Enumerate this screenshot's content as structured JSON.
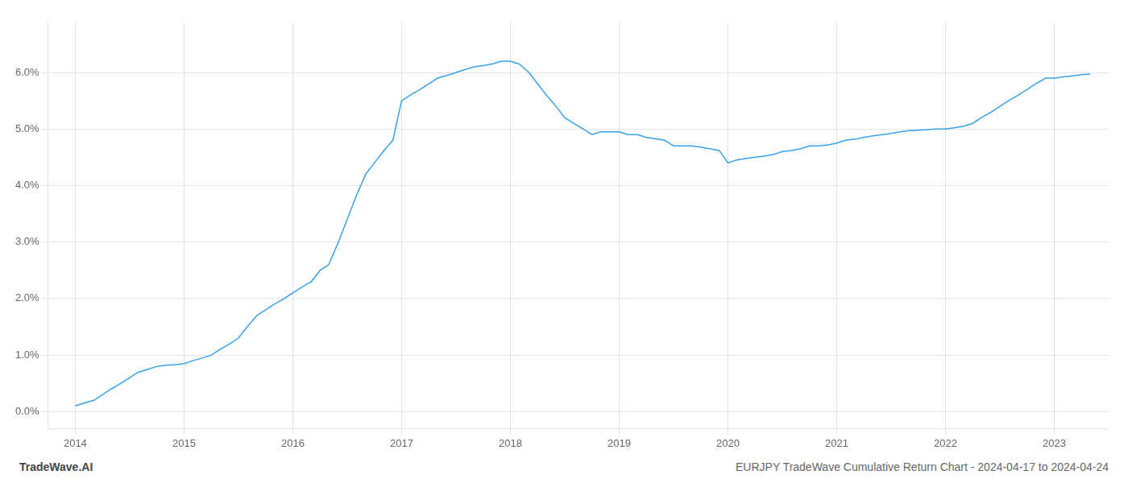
{
  "chart_data": {
    "type": "line",
    "title": "EURJPY TradeWave Cumulative Return Chart - 2024-04-17 to 2024-04-24",
    "annotations": [
      "TradeWave.AI"
    ],
    "x": [
      2014.0,
      2014.08,
      2014.17,
      2014.25,
      2014.33,
      2014.42,
      2014.5,
      2014.58,
      2014.67,
      2014.75,
      2014.83,
      2014.92,
      2015.0,
      2015.08,
      2015.17,
      2015.25,
      2015.33,
      2015.42,
      2015.5,
      2015.58,
      2015.67,
      2015.75,
      2015.83,
      2015.92,
      2016.0,
      2016.08,
      2016.17,
      2016.25,
      2016.33,
      2016.42,
      2016.5,
      2016.58,
      2016.67,
      2016.75,
      2016.83,
      2016.92,
      2017.0,
      2017.08,
      2017.17,
      2017.25,
      2017.33,
      2017.42,
      2017.5,
      2017.58,
      2017.67,
      2017.75,
      2017.83,
      2017.92,
      2018.0,
      2018.08,
      2018.17,
      2018.25,
      2018.33,
      2018.42,
      2018.5,
      2018.58,
      2018.67,
      2018.75,
      2018.83,
      2018.92,
      2019.0,
      2019.08,
      2019.17,
      2019.25,
      2019.33,
      2019.42,
      2019.5,
      2019.58,
      2019.67,
      2019.75,
      2019.83,
      2019.92,
      2020.0,
      2020.08,
      2020.17,
      2020.25,
      2020.33,
      2020.42,
      2020.5,
      2020.58,
      2020.67,
      2020.75,
      2020.83,
      2020.92,
      2021.0,
      2021.08,
      2021.17,
      2021.25,
      2021.33,
      2021.42,
      2021.5,
      2021.58,
      2021.67,
      2021.75,
      2021.83,
      2021.92,
      2022.0,
      2022.08,
      2022.17,
      2022.25,
      2022.33,
      2022.42,
      2022.5,
      2022.58,
      2022.67,
      2022.75,
      2022.83,
      2022.92,
      2023.0,
      2023.08,
      2023.17,
      2023.25,
      2023.33
    ],
    "values": [
      0.001,
      0.0015,
      0.002,
      0.003,
      0.004,
      0.005,
      0.006,
      0.007,
      0.0075,
      0.008,
      0.0082,
      0.0083,
      0.0085,
      0.009,
      0.0095,
      0.01,
      0.011,
      0.012,
      0.013,
      0.015,
      0.017,
      0.018,
      0.019,
      0.02,
      0.021,
      0.022,
      0.023,
      0.025,
      0.026,
      0.03,
      0.034,
      0.038,
      0.042,
      0.044,
      0.046,
      0.048,
      0.055,
      0.056,
      0.057,
      0.058,
      0.059,
      0.0595,
      0.06,
      0.0605,
      0.061,
      0.0612,
      0.0615,
      0.062,
      0.062,
      0.0615,
      0.06,
      0.058,
      0.056,
      0.054,
      0.052,
      0.051,
      0.05,
      0.049,
      0.0495,
      0.0495,
      0.0495,
      0.049,
      0.049,
      0.0485,
      0.0483,
      0.048,
      0.047,
      0.047,
      0.047,
      0.0468,
      0.0465,
      0.0462,
      0.044,
      0.0445,
      0.0448,
      0.045,
      0.0452,
      0.0455,
      0.046,
      0.0462,
      0.0465,
      0.047,
      0.047,
      0.0472,
      0.0475,
      0.048,
      0.0482,
      0.0485,
      0.0488,
      0.049,
      0.0492,
      0.0495,
      0.0497,
      0.0498,
      0.0499,
      0.05,
      0.05,
      0.0502,
      0.0505,
      0.051,
      0.052,
      0.053,
      0.054,
      0.055,
      0.056,
      0.057,
      0.058,
      0.059,
      0.059,
      0.0592,
      0.0594,
      0.0596,
      0.0597
    ],
    "xlim": [
      2013.75,
      2023.5
    ],
    "ylim": [
      -0.003,
      0.069
    ],
    "xticks": [
      2014,
      2015,
      2016,
      2017,
      2018,
      2019,
      2020,
      2021,
      2022,
      2023
    ],
    "yticks": [
      {
        "value": 0.0,
        "label": "0.0%"
      },
      {
        "value": 0.01,
        "label": "1.0%"
      },
      {
        "value": 0.02,
        "label": "2.0%"
      },
      {
        "value": 0.03,
        "label": "3.0%"
      },
      {
        "value": 0.04,
        "label": "4.0%"
      },
      {
        "value": 0.05,
        "label": "5.0%"
      },
      {
        "value": 0.06,
        "label": "6.0%"
      }
    ],
    "grid": true
  }
}
